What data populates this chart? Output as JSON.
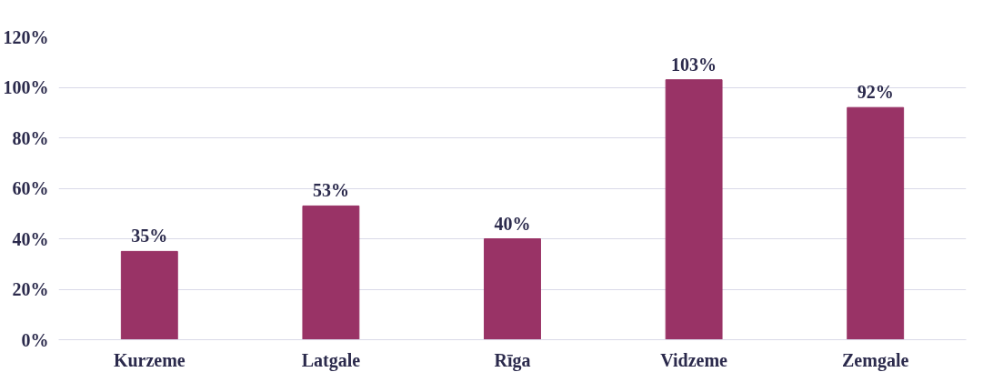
{
  "chart_data": {
    "type": "bar",
    "categories": [
      "Kurzeme",
      "Latgale",
      "Rīga",
      "Vidzeme",
      "Zemgale"
    ],
    "values": [
      35,
      53,
      40,
      103,
      92
    ],
    "value_labels": [
      "35%",
      "53%",
      "40%",
      "103%",
      "92%"
    ],
    "color": "#993366",
    "ylim": [
      0,
      120
    ],
    "yticks": [
      {
        "value": 0,
        "label": "0%"
      },
      {
        "value": 20,
        "label": "20%"
      },
      {
        "value": 40,
        "label": "40%"
      },
      {
        "value": 60,
        "label": "60%"
      },
      {
        "value": 80,
        "label": "80%"
      },
      {
        "value": 100,
        "label": "100%"
      },
      {
        "value": 120,
        "label": "120%"
      }
    ],
    "grid": "y"
  }
}
